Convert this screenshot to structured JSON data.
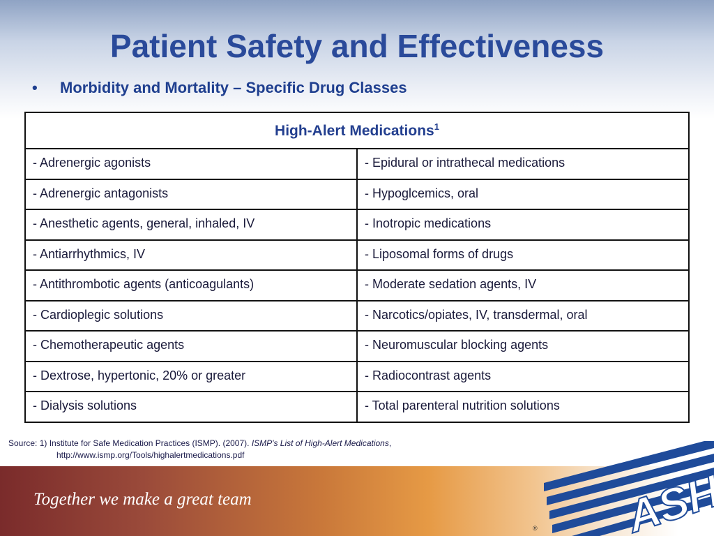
{
  "title": "Patient Safety and Effectiveness",
  "bullet": {
    "marker": "•",
    "text": "Morbidity and Mortality – Specific Drug Classes"
  },
  "table": {
    "header": "High-Alert Medications",
    "header_sup": "1",
    "rows": [
      [
        "- Adrenergic agonists",
        "- Epidural or intrathecal medications"
      ],
      [
        "- Adrenergic antagonists",
        "- Hypoglcemics, oral"
      ],
      [
        "- Anesthetic agents, general, inhaled, IV",
        "- Inotropic medications"
      ],
      [
        "- Antiarrhythmics, IV",
        "- Liposomal forms of drugs"
      ],
      [
        "- Antithrombotic agents (anticoagulants)",
        "- Moderate sedation agents, IV"
      ],
      [
        "- Cardioplegic solutions",
        "- Narcotics/opiates, IV, transdermal, oral"
      ],
      [
        "- Chemotherapeutic agents",
        "- Neuromuscular blocking agents"
      ],
      [
        "- Dextrose, hypertonic, 20% or greater",
        "- Radiocontrast agents"
      ],
      [
        "- Dialysis solutions",
        "- Total parenteral nutrition solutions"
      ]
    ]
  },
  "source": {
    "prefix": "Source:  1) Institute for Safe Medication Practices (ISMP). (2007). ",
    "italic": "ISMP's List of High-Alert Medications",
    "suffix": ",",
    "url": "http://www.ismp.org/Tools/highalertmedications.pdf"
  },
  "footer": {
    "tagline": "Together we make a great team",
    "logo_text": "ASHP",
    "registered": "®"
  },
  "colors": {
    "title": "#2a4a9a",
    "logo_blue": "#1f4b9a"
  }
}
